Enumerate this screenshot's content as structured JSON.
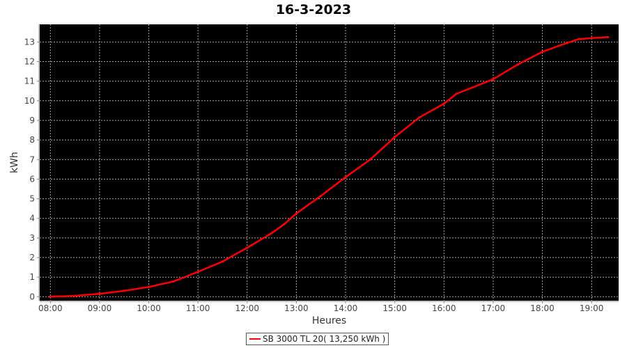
{
  "chart_data": {
    "type": "line",
    "title": "16-3-2023",
    "xlabel": "Heures",
    "ylabel": "kWh",
    "x_tick_labels": [
      "08:00",
      "09:00",
      "10:00",
      "11:00",
      "12:00",
      "13:00",
      "14:00",
      "15:00",
      "16:00",
      "17:00",
      "18:00",
      "19:00"
    ],
    "y_tick_labels": [
      "0",
      "1",
      "2",
      "3",
      "4",
      "5",
      "6",
      "7",
      "8",
      "9",
      "10",
      "11",
      "12",
      "13"
    ],
    "xlim": [
      "07:47",
      "19:33"
    ],
    "ylim": [
      -0.2,
      13.9
    ],
    "grid": true,
    "background": "#000000",
    "legend_position": "bottom",
    "series": [
      {
        "name": "SB 3000 TL 20( 13,250 kWh )",
        "color": "#ff0000",
        "x": [
          "08:00",
          "08:30",
          "09:00",
          "09:30",
          "10:00",
          "10:30",
          "11:00",
          "11:30",
          "12:00",
          "12:30",
          "12:45",
          "13:00",
          "13:30",
          "14:00",
          "14:30",
          "15:00",
          "15:30",
          "16:00",
          "16:15",
          "16:30",
          "17:00",
          "17:30",
          "18:00",
          "18:30",
          "18:45",
          "19:00",
          "19:20"
        ],
        "y": [
          0.0,
          0.05,
          0.15,
          0.3,
          0.5,
          0.78,
          1.27,
          1.8,
          2.5,
          3.25,
          3.7,
          4.25,
          5.15,
          6.1,
          7.0,
          8.15,
          9.15,
          9.85,
          10.35,
          10.6,
          11.1,
          11.85,
          12.5,
          12.95,
          13.15,
          13.2,
          13.25
        ]
      }
    ]
  }
}
